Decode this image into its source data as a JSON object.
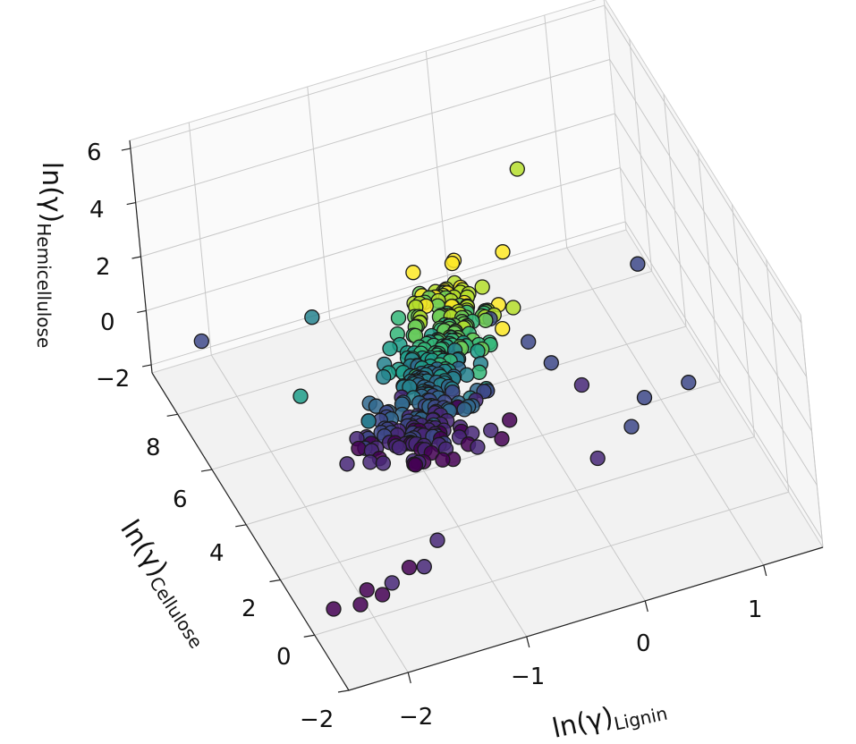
{
  "chart_data": {
    "type": "scatter",
    "projection": "3d",
    "colormap": "viridis",
    "color_by": "z",
    "grid": true,
    "x_axis": {
      "label": "ln(γ)",
      "label_sub": "Lignin",
      "ticks": [
        -2,
        -1,
        0,
        1
      ],
      "tick_labels": [
        "−2",
        "−1",
        "0",
        "1"
      ],
      "range": [
        -2.5,
        1.5
      ]
    },
    "y_axis": {
      "label": "ln(γ)",
      "label_sub": "Cellulose",
      "ticks": [
        -2,
        0,
        2,
        4,
        6,
        8
      ],
      "tick_labels": [
        "−2",
        "0",
        "2",
        "4",
        "6",
        "8"
      ],
      "range": [
        -2,
        9.5
      ]
    },
    "z_axis": {
      "label": "ln(γ)",
      "label_sub": "Hemicellulose",
      "ticks": [
        -2,
        0,
        2,
        4,
        6
      ],
      "tick_labels": [
        "−2",
        "0",
        "2",
        "4",
        "6"
      ],
      "range": [
        -2.3,
        6.3
      ]
    },
    "colors": [
      "#440154",
      "#482878",
      "#3e4989",
      "#31688e",
      "#26828e",
      "#1f9e89",
      "#35b779",
      "#6ece58",
      "#b5de2b",
      "#fde725"
    ]
  }
}
